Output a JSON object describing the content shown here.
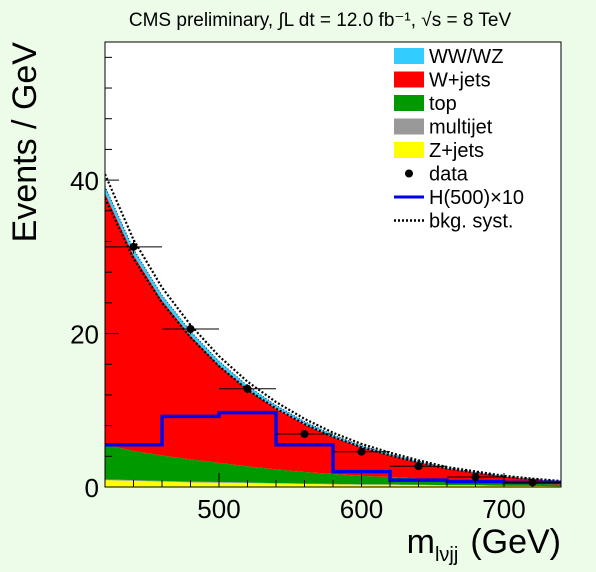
{
  "chart_data": {
    "type": "area",
    "title": "CMS preliminary, ∫L dt = 12.0 fb⁻¹, √s = 8 TeV",
    "xlabel": "m",
    "xlabel_sub": "lνjj",
    "xlabel_unit": "(GeV)",
    "ylabel": "Events / GeV",
    "xlim": [
      420,
      740
    ],
    "ylim": [
      0,
      58
    ],
    "x_ticks": [
      500,
      600,
      700
    ],
    "y_ticks": [
      0,
      20,
      40
    ],
    "grid": false,
    "legend_position": "top-right",
    "x": [
      420,
      440,
      460,
      480,
      500,
      520,
      540,
      560,
      580,
      600,
      620,
      640,
      660,
      680,
      700,
      720,
      740
    ],
    "series": [
      {
        "name": "Z+jets",
        "color": "#ffff00",
        "kind": "stack",
        "values": [
          0.9,
          0.8,
          0.7,
          0.6,
          0.55,
          0.5,
          0.45,
          0.4,
          0.35,
          0.3,
          0.3,
          0.25,
          0.2,
          0.2,
          0.15,
          0.15,
          0.1
        ]
      },
      {
        "name": "multijet",
        "color": "#999999",
        "kind": "stack",
        "values": [
          0.1,
          0.1,
          0.1,
          0.1,
          0.1,
          0.1,
          0.05,
          0.05,
          0.05,
          0.05,
          0.05,
          0.05,
          0.05,
          0.05,
          0.0,
          0.0,
          0.0
        ]
      },
      {
        "name": "top",
        "color": "#009900",
        "kind": "stack",
        "values": [
          4.5,
          3.8,
          3.3,
          2.9,
          2.5,
          2.1,
          1.8,
          1.5,
          1.3,
          1.1,
          0.95,
          0.8,
          0.65,
          0.5,
          0.4,
          0.3,
          0.2
        ]
      },
      {
        "name": "W+jets",
        "color": "#ff0000",
        "kind": "stack",
        "values": [
          32.8,
          25.5,
          20.2,
          16.1,
          12.7,
          10.0,
          7.9,
          6.2,
          4.8,
          3.7,
          2.8,
          2.1,
          1.5,
          1.1,
          0.8,
          0.55,
          0.4
        ]
      },
      {
        "name": "WW/WZ",
        "color": "#33ccff",
        "kind": "stack",
        "values": [
          0.9,
          0.8,
          0.7,
          0.6,
          0.55,
          0.5,
          0.45,
          0.4,
          0.3,
          0.25,
          0.2,
          0.15,
          0.1,
          0.1,
          0.05,
          0.05,
          0.05
        ]
      }
    ],
    "data_points": {
      "name": "data",
      "x": [
        440,
        480,
        520,
        560,
        600,
        640,
        680,
        720
      ],
      "y": [
        31.3,
        20.6,
        12.8,
        6.9,
        4.6,
        2.7,
        1.3,
        0.6
      ],
      "xerr": 20,
      "yerr": [
        0.9,
        0.7,
        0.6,
        0.4,
        0.35,
        0.25,
        0.18,
        0.12
      ]
    },
    "signal": {
      "name": "H(500)×10",
      "color": "#0000ee",
      "edges": [
        420,
        460,
        500,
        540,
        580,
        620,
        660,
        700,
        740
      ],
      "values": [
        5.5,
        9.2,
        9.7,
        5.5,
        2.0,
        0.9,
        0.7,
        0.6
      ]
    },
    "syst_band": {
      "name": "bkg. syst.",
      "rel_unc": 0.04
    },
    "legend": [
      {
        "label": "WW/WZ",
        "kind": "box",
        "color": "#33ccff"
      },
      {
        "label": "W+jets",
        "kind": "box",
        "color": "#ff0000"
      },
      {
        "label": "top",
        "kind": "box",
        "color": "#009900"
      },
      {
        "label": "multijet",
        "kind": "box",
        "color": "#999999"
      },
      {
        "label": "Z+jets",
        "kind": "box",
        "color": "#ffff00"
      },
      {
        "label": "data",
        "kind": "marker",
        "color": "#000000"
      },
      {
        "label": "H(500)×10",
        "kind": "line",
        "color": "#0000ee"
      },
      {
        "label": "bkg. syst.",
        "kind": "dotted",
        "color": "#000000"
      }
    ]
  }
}
